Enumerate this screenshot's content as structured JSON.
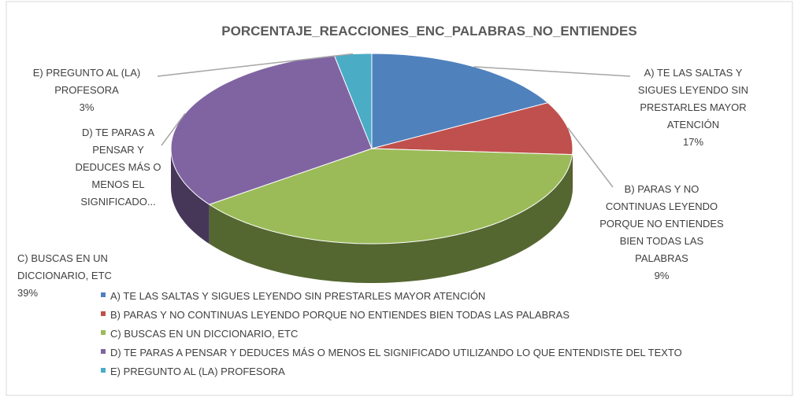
{
  "chart_data": {
    "type": "pie3d",
    "title": "PORCENTAJE_REACCIONES_ENC_PALABRAS_NO_ENTIENDES",
    "categories": [
      "A) TE LAS SALTAS Y SIGUES LEYENDO SIN PRESTARLES MAYOR ATENCIÓN",
      "B) PARAS Y NO CONTINUAS LEYENDO PORQUE NO ENTIENDES BIEN TODAS LAS PALABRAS",
      "C) BUSCAS EN UN DICCIONARIO, ETC",
      "D) TE PARAS A PENSAR Y DEDUCES MÁS O MENOS EL SIGNIFICADO UTILIZANDO LO QUE ENTENDISTE DEL TEXTO",
      "E) PREGUNTO AL (LA) PROFESORA"
    ],
    "values": [
      17,
      9,
      39,
      32,
      3
    ],
    "value_labels": [
      "17%",
      "9%",
      "39%",
      null,
      "3%"
    ],
    "slice_labels": [
      "A) TE LAS SALTAS Y SIGUES LEYENDO SIN PRESTARLES MAYOR ATENCIÓN",
      "B) PARAS Y NO CONTINUAS LEYENDO PORQUE NO ENTIENDES BIEN TODAS LAS PALABRAS",
      "C) BUSCAS EN UN DICCIONARIO, ETC",
      "D) TE PARAS A PENSAR Y DEDUCES MÁS O MENOS EL SIGNIFICADO...",
      "E) PREGUNTO AL (LA) PROFESORA"
    ],
    "colors": [
      "#4f81bd",
      "#c0504d",
      "#9bbb59",
      "#8064a2",
      "#4bacc6"
    ],
    "legend": "bottom"
  }
}
